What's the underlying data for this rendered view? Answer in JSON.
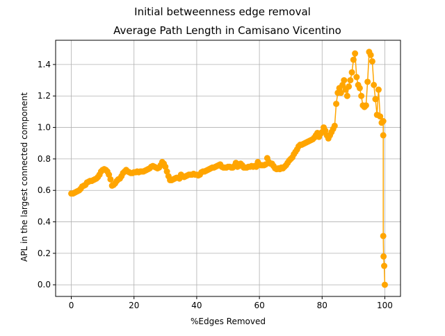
{
  "figure": {
    "suptitle": "Initial betweenness edge removal",
    "title": "Average Path Length in Camisano Vicentino"
  },
  "colors": {
    "series": "#FFA500",
    "grid": "#b0b0b0",
    "axis": "#000000",
    "background": "#ffffff"
  },
  "chart_data": {
    "type": "line",
    "title": "Average Path Length in Camisano Vicentino",
    "xlabel": "%Edges Removed",
    "ylabel": "APL in the largest connected component",
    "xlim": [
      -5,
      105
    ],
    "ylim": [
      -0.074,
      1.554
    ],
    "grid": true,
    "marker": "circle",
    "xticks": [
      0,
      20,
      40,
      60,
      80,
      100
    ],
    "yticks": [
      0.0,
      0.2,
      0.4,
      0.6,
      0.8,
      1.0,
      1.2,
      1.4
    ],
    "xtick_labels": [
      "0",
      "20",
      "40",
      "60",
      "80",
      "100"
    ],
    "ytick_labels": [
      "0.0",
      "0.2",
      "0.4",
      "0.6",
      "0.8",
      "1.0",
      "1.2",
      "1.4"
    ],
    "series": [
      {
        "color": "#FFA500",
        "points": [
          [
            0.0,
            0.58
          ],
          [
            0.5,
            0.58
          ],
          [
            1.0,
            0.585
          ],
          [
            1.5,
            0.59
          ],
          [
            2.0,
            0.595
          ],
          [
            2.5,
            0.6
          ],
          [
            3.0,
            0.61
          ],
          [
            3.5,
            0.625
          ],
          [
            4.0,
            0.63
          ],
          [
            4.5,
            0.635
          ],
          [
            5.0,
            0.65
          ],
          [
            5.5,
            0.655
          ],
          [
            6.0,
            0.66
          ],
          [
            6.5,
            0.66
          ],
          [
            7.0,
            0.665
          ],
          [
            7.5,
            0.67
          ],
          [
            8.0,
            0.675
          ],
          [
            8.5,
            0.685
          ],
          [
            9.0,
            0.7
          ],
          [
            9.5,
            0.72
          ],
          [
            10.0,
            0.73
          ],
          [
            10.5,
            0.735
          ],
          [
            11.0,
            0.73
          ],
          [
            11.5,
            0.72
          ],
          [
            12.0,
            0.7
          ],
          [
            12.5,
            0.67
          ],
          [
            13.0,
            0.63
          ],
          [
            13.5,
            0.635
          ],
          [
            14.0,
            0.645
          ],
          [
            14.5,
            0.66
          ],
          [
            15.0,
            0.67
          ],
          [
            15.5,
            0.675
          ],
          [
            16.0,
            0.69
          ],
          [
            16.5,
            0.71
          ],
          [
            17.0,
            0.72
          ],
          [
            17.5,
            0.73
          ],
          [
            18.0,
            0.72
          ],
          [
            18.5,
            0.715
          ],
          [
            19.0,
            0.71
          ],
          [
            19.5,
            0.71
          ],
          [
            20.0,
            0.715
          ],
          [
            20.5,
            0.715
          ],
          [
            21.0,
            0.72
          ],
          [
            21.5,
            0.715
          ],
          [
            22.0,
            0.72
          ],
          [
            22.5,
            0.72
          ],
          [
            23.0,
            0.72
          ],
          [
            23.5,
            0.725
          ],
          [
            24.0,
            0.73
          ],
          [
            24.5,
            0.735
          ],
          [
            25.0,
            0.74
          ],
          [
            25.5,
            0.75
          ],
          [
            26.0,
            0.755
          ],
          [
            26.5,
            0.75
          ],
          [
            27.0,
            0.745
          ],
          [
            27.5,
            0.74
          ],
          [
            28.0,
            0.745
          ],
          [
            28.5,
            0.76
          ],
          [
            29.0,
            0.78
          ],
          [
            29.5,
            0.77
          ],
          [
            30.0,
            0.75
          ],
          [
            30.5,
            0.72
          ],
          [
            31.0,
            0.69
          ],
          [
            31.5,
            0.665
          ],
          [
            32.0,
            0.665
          ],
          [
            32.5,
            0.67
          ],
          [
            33.0,
            0.675
          ],
          [
            33.5,
            0.68
          ],
          [
            34.0,
            0.68
          ],
          [
            34.5,
            0.675
          ],
          [
            35.0,
            0.7
          ],
          [
            35.5,
            0.69
          ],
          [
            36.0,
            0.685
          ],
          [
            36.5,
            0.69
          ],
          [
            37.0,
            0.695
          ],
          [
            37.5,
            0.7
          ],
          [
            38.0,
            0.7
          ],
          [
            38.5,
            0.7
          ],
          [
            39.0,
            0.705
          ],
          [
            39.5,
            0.7
          ],
          [
            40.0,
            0.7
          ],
          [
            40.5,
            0.695
          ],
          [
            41.0,
            0.7
          ],
          [
            41.5,
            0.715
          ],
          [
            42.0,
            0.72
          ],
          [
            42.5,
            0.72
          ],
          [
            43.0,
            0.725
          ],
          [
            43.5,
            0.73
          ],
          [
            44.0,
            0.735
          ],
          [
            44.5,
            0.74
          ],
          [
            45.0,
            0.745
          ],
          [
            45.5,
            0.745
          ],
          [
            46.0,
            0.75
          ],
          [
            46.5,
            0.755
          ],
          [
            47.0,
            0.76
          ],
          [
            47.5,
            0.765
          ],
          [
            48.0,
            0.75
          ],
          [
            48.5,
            0.745
          ],
          [
            49.0,
            0.745
          ],
          [
            49.5,
            0.745
          ],
          [
            50.0,
            0.75
          ],
          [
            50.5,
            0.75
          ],
          [
            51.0,
            0.745
          ],
          [
            51.5,
            0.745
          ],
          [
            52.0,
            0.755
          ],
          [
            52.5,
            0.775
          ],
          [
            53.0,
            0.75
          ],
          [
            53.5,
            0.755
          ],
          [
            54.0,
            0.77
          ],
          [
            54.5,
            0.76
          ],
          [
            55.0,
            0.745
          ],
          [
            55.5,
            0.745
          ],
          [
            56.0,
            0.745
          ],
          [
            56.5,
            0.75
          ],
          [
            57.0,
            0.75
          ],
          [
            57.5,
            0.755
          ],
          [
            58.0,
            0.75
          ],
          [
            58.5,
            0.755
          ],
          [
            59.0,
            0.75
          ],
          [
            59.5,
            0.78
          ],
          [
            60.0,
            0.765
          ],
          [
            60.5,
            0.76
          ],
          [
            61.0,
            0.76
          ],
          [
            61.5,
            0.76
          ],
          [
            62.0,
            0.765
          ],
          [
            62.5,
            0.805
          ],
          [
            63.0,
            0.78
          ],
          [
            63.5,
            0.77
          ],
          [
            64.0,
            0.77
          ],
          [
            64.5,
            0.755
          ],
          [
            65.0,
            0.74
          ],
          [
            65.5,
            0.735
          ],
          [
            66.0,
            0.74
          ],
          [
            66.5,
            0.735
          ],
          [
            67.0,
            0.745
          ],
          [
            67.5,
            0.74
          ],
          [
            68.0,
            0.75
          ],
          [
            68.5,
            0.76
          ],
          [
            69.0,
            0.775
          ],
          [
            69.5,
            0.79
          ],
          [
            70.0,
            0.8
          ],
          [
            70.5,
            0.81
          ],
          [
            71.0,
            0.83
          ],
          [
            71.5,
            0.845
          ],
          [
            72.0,
            0.86
          ],
          [
            72.5,
            0.88
          ],
          [
            73.0,
            0.89
          ],
          [
            73.5,
            0.89
          ],
          [
            74.0,
            0.895
          ],
          [
            74.5,
            0.9
          ],
          [
            75.0,
            0.905
          ],
          [
            75.5,
            0.91
          ],
          [
            76.0,
            0.915
          ],
          [
            76.5,
            0.92
          ],
          [
            77.0,
            0.925
          ],
          [
            77.5,
            0.935
          ],
          [
            78.0,
            0.95
          ],
          [
            78.5,
            0.965
          ],
          [
            79.0,
            0.94
          ],
          [
            79.5,
            0.96
          ],
          [
            80.0,
            0.97
          ],
          [
            80.5,
            1.0
          ],
          [
            81.0,
            0.98
          ],
          [
            81.5,
            0.95
          ],
          [
            82.0,
            0.93
          ],
          [
            82.5,
            0.95
          ],
          [
            83.0,
            0.97
          ],
          [
            83.5,
            0.99
          ],
          [
            84.0,
            1.01
          ],
          [
            84.5,
            1.15
          ],
          [
            85.0,
            1.22
          ],
          [
            85.5,
            1.25
          ],
          [
            86.0,
            1.22
          ],
          [
            86.5,
            1.27
          ],
          [
            87.0,
            1.3
          ],
          [
            87.5,
            1.24
          ],
          [
            88.0,
            1.2
          ],
          [
            88.5,
            1.26
          ],
          [
            89.0,
            1.3
          ],
          [
            89.5,
            1.35
          ],
          [
            90.0,
            1.43
          ],
          [
            90.5,
            1.47
          ],
          [
            91.0,
            1.32
          ],
          [
            91.5,
            1.27
          ],
          [
            92.0,
            1.25
          ],
          [
            92.5,
            1.2
          ],
          [
            93.0,
            1.14
          ],
          [
            93.5,
            1.13
          ],
          [
            94.0,
            1.14
          ],
          [
            94.5,
            1.29
          ],
          [
            95.0,
            1.48
          ],
          [
            95.5,
            1.46
          ],
          [
            96.0,
            1.42
          ],
          [
            96.5,
            1.27
          ],
          [
            97.0,
            1.18
          ],
          [
            97.5,
            1.08
          ],
          [
            98.0,
            1.24
          ],
          [
            98.5,
            1.07
          ],
          [
            99.0,
            1.03
          ],
          [
            99.5,
            1.04
          ],
          [
            99.5,
            0.95
          ],
          [
            99.5,
            0.31
          ],
          [
            99.6,
            0.18
          ],
          [
            99.8,
            0.12
          ],
          [
            100.0,
            0.0
          ]
        ]
      }
    ]
  }
}
